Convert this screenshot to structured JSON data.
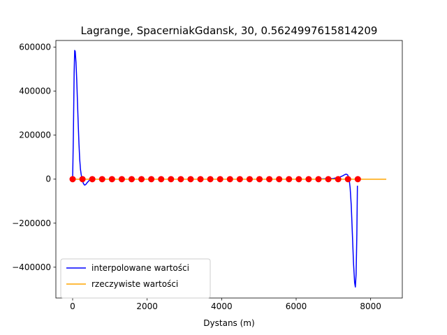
{
  "chart_data": {
    "type": "line",
    "title": "Lagrange, SpacerniakGdansk, 30, 0.5624997615814209",
    "xlabel": "Dystans (m)",
    "ylabel": "",
    "xlim": [
      -450,
      8850
    ],
    "ylim": [
      -540000,
      630000
    ],
    "x_ticks": [
      {
        "value": 0,
        "label": "0"
      },
      {
        "value": 2000,
        "label": "2000"
      },
      {
        "value": 4000,
        "label": "4000"
      },
      {
        "value": 6000,
        "label": "6000"
      },
      {
        "value": 8000,
        "label": "8000"
      }
    ],
    "y_ticks": [
      {
        "value": 600000,
        "label": "600000"
      },
      {
        "value": 400000,
        "label": "400000"
      },
      {
        "value": 200000,
        "label": "200000"
      },
      {
        "value": 0,
        "label": "0"
      },
      {
        "value": -200000,
        "label": "−200000"
      },
      {
        "value": -400000,
        "label": "−400000"
      }
    ],
    "grid": false,
    "legend_position": "lower-left",
    "series": [
      {
        "name": "interpolowane wartości",
        "color": "#0000ff",
        "kind": "line",
        "x": [
          0,
          20,
          40,
          55,
          70,
          90,
          110,
          130,
          150,
          170,
          190,
          210,
          230,
          250,
          270,
          290,
          320,
          350,
          380,
          420,
          460,
          520,
          600,
          800,
          1500,
          3000,
          5000,
          6500,
          7000,
          7150,
          7250,
          7300,
          7340,
          7380,
          7420,
          7450,
          7480,
          7510,
          7540,
          7570,
          7590,
          7610,
          7630,
          7645
        ],
        "y": [
          0,
          200000,
          480000,
          585000,
          580000,
          530000,
          450000,
          350000,
          250000,
          160000,
          90000,
          45000,
          20000,
          5000,
          -10000,
          -20000,
          -27000,
          -25000,
          -18000,
          -10000,
          -4000,
          -1500,
          0,
          0,
          0,
          0,
          0,
          0,
          3000,
          8000,
          15000,
          20000,
          23000,
          20000,
          5000,
          -40000,
          -120000,
          -250000,
          -380000,
          -470000,
          -490000,
          -430000,
          -250000,
          -30000
        ]
      },
      {
        "name": "rzeczywiste wartości",
        "color": "#ffa500",
        "kind": "line",
        "x": [
          0,
          8420
        ],
        "y": [
          0,
          0
        ]
      },
      {
        "name": "",
        "color": "#ff0000",
        "kind": "points",
        "x": [
          0,
          264,
          528,
          792,
          1056,
          1320,
          1584,
          1848,
          2112,
          2376,
          2640,
          2904,
          3168,
          3432,
          3696,
          3960,
          4224,
          4488,
          4752,
          5016,
          5280,
          5544,
          5808,
          6072,
          6336,
          6600,
          6864,
          7128,
          7392,
          7656
        ],
        "y": [
          0,
          0,
          0,
          0,
          0,
          0,
          0,
          0,
          0,
          0,
          0,
          0,
          0,
          0,
          0,
          0,
          0,
          0,
          0,
          0,
          0,
          0,
          0,
          0,
          0,
          0,
          0,
          0,
          0,
          0
        ]
      }
    ]
  }
}
